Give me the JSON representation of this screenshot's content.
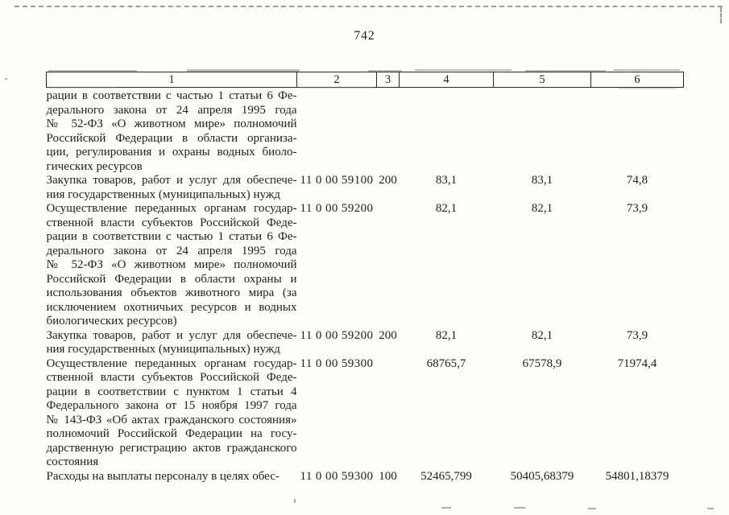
{
  "page": {
    "number": "742"
  },
  "table": {
    "header": [
      "1",
      "2",
      "3",
      "4",
      "5",
      "6"
    ],
    "rows": [
      {
        "name_lines": [
          "рации в соответствии с частью 1 статьи 6 Фе-",
          "дерального закона от 24 апреля 1995 года",
          "№ 52-ФЗ «О животном мире» полномочий",
          "Российской Федерации в области организа-",
          "ции, регулирования и охраны водных биоло-",
          "гических ресурсов"
        ],
        "code": "",
        "expense_type": "",
        "amount_y1": "",
        "amount_y2": "",
        "amount_y3": ""
      },
      {
        "name_lines": [
          "Закупка товаров, работ и услуг для обеспече-",
          "ния государственных (муниципальных) нужд"
        ],
        "code": "11 0 00 59100",
        "expense_type": "200",
        "amount_y1": "83,1",
        "amount_y2": "83,1",
        "amount_y3": "74,8"
      },
      {
        "name_lines": [
          "Осуществление переданных органам государ-",
          "ственной власти субъектов Российской Феде-",
          "рации в соответствии с частью 1 статьи 6 Фе-",
          "дерального закона от 24 апреля 1995 года",
          "№ 52-ФЗ «О животном мире» полномочий",
          "Российской Федерации в области охраны и",
          "использования объектов животного мира (за",
          "исключением охотничьих ресурсов и водных",
          "биологических ресурсов)"
        ],
        "code": "11 0 00 59200",
        "expense_type": "",
        "amount_y1": "82,1",
        "amount_y2": "82,1",
        "amount_y3": "73,9"
      },
      {
        "name_lines": [
          "Закупка товаров, работ и услуг для обеспече-",
          "ния государственных (муниципальных) нужд"
        ],
        "code": "11 0 00 59200",
        "expense_type": "200",
        "amount_y1": "82,1",
        "amount_y2": "82,1",
        "amount_y3": "73,9"
      },
      {
        "name_lines": [
          "Осуществление переданных органам государ-",
          "ственной власти субъектов Российской Феде-",
          "рации в соответствии с пунктом 1 статьи 4",
          "Федерального закона от 15 ноября 1997 года",
          "№ 143-ФЗ «Об актах гражданского состояния»",
          "полномочий Российской Федерации на госу-",
          "дарственную регистрацию актов гражданского",
          "состояния"
        ],
        "code": "11 0 00 59300",
        "expense_type": "",
        "amount_y1": "68765,7",
        "amount_y2": "67578,9",
        "amount_y3": "71974,4"
      },
      {
        "name_lines": [
          "Расходы на выплаты персоналу в целях обес-"
        ],
        "code": "11 0 00 59300",
        "expense_type": "100",
        "amount_y1": "52465,799",
        "amount_y2": "50405,68379",
        "amount_y3": "54801,18379"
      }
    ]
  }
}
